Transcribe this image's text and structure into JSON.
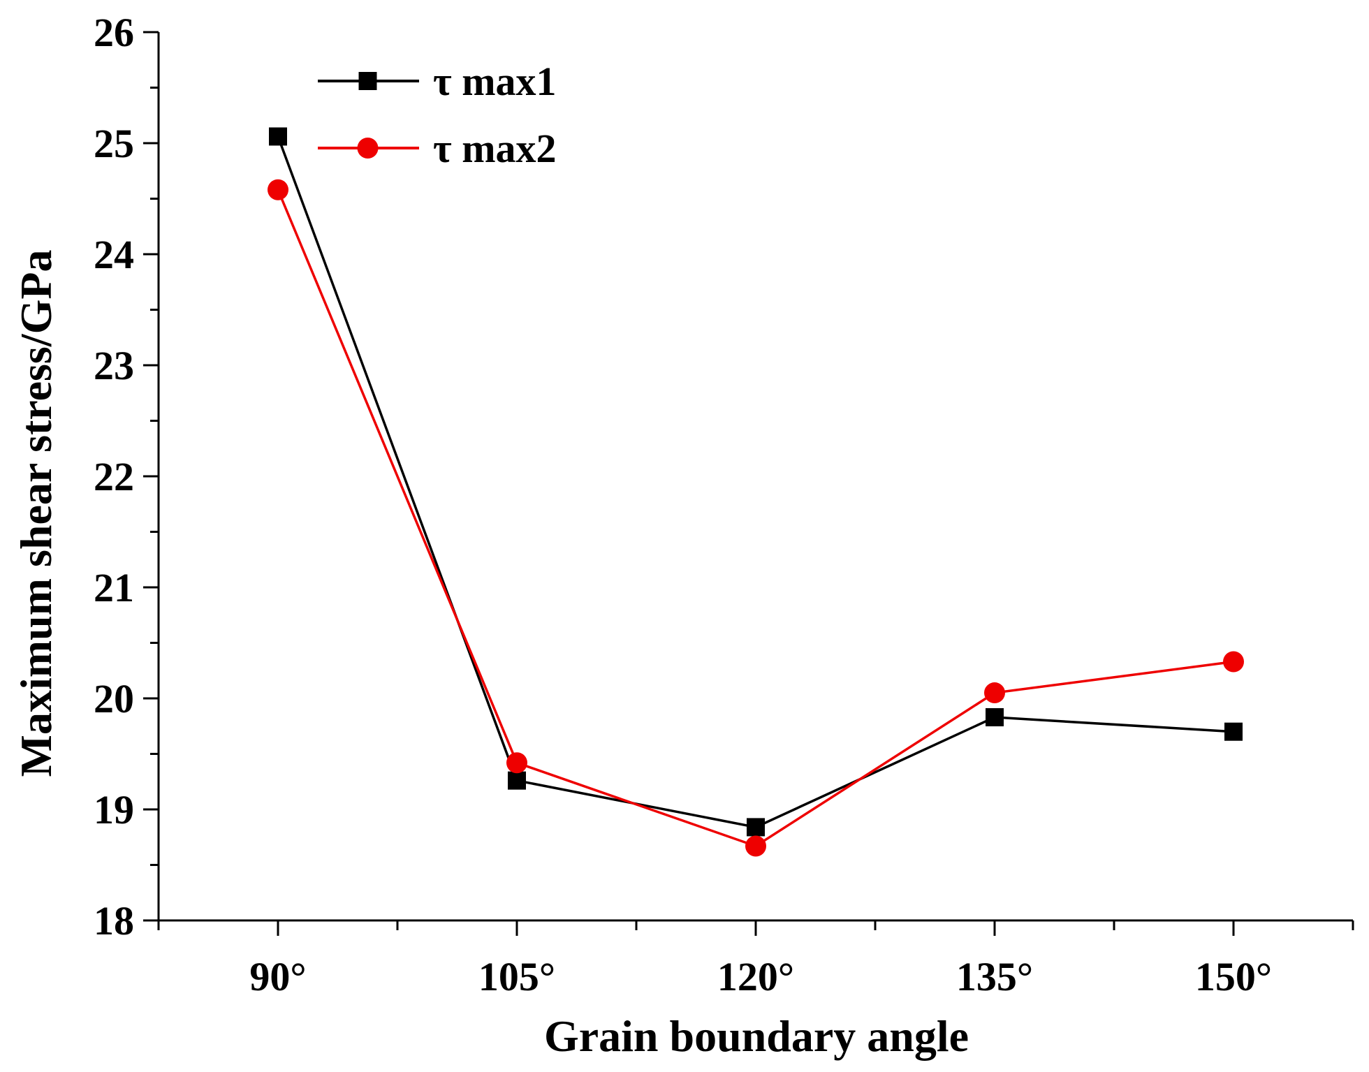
{
  "chart_data": {
    "type": "line",
    "title": "",
    "xlabel": "Grain boundary angle",
    "ylabel": "Maximum shear stress/GPa",
    "categories": [
      "90°",
      "105°",
      "120°",
      "135°",
      "150°"
    ],
    "x": [
      90,
      105,
      120,
      135,
      150
    ],
    "xlim": [
      82.5,
      157.5
    ],
    "ylim": [
      18,
      26
    ],
    "yticks": [
      "18",
      "19",
      "20",
      "21",
      "22",
      "23",
      "24",
      "25",
      "26"
    ],
    "grid": false,
    "legend_position": "top-left",
    "series": [
      {
        "name": "τ max1",
        "color": "#000000",
        "marker": "square",
        "values": [
          25.06,
          19.26,
          18.84,
          19.83,
          19.7
        ]
      },
      {
        "name": "τ max2",
        "color": "#ee0000",
        "marker": "circle",
        "values": [
          24.58,
          19.42,
          18.67,
          20.05,
          20.33
        ]
      }
    ]
  }
}
